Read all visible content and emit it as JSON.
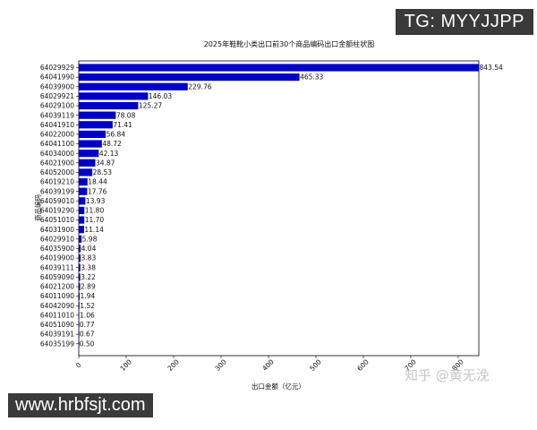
{
  "overlays": {
    "top_right": "TG: MYYJJPP",
    "bottom_left": "www.hrbfsjt.com"
  },
  "watermark": {
    "text": "知乎 @黄无浼"
  },
  "colors": {
    "bar": "#0000c8",
    "overlay_bg": "#3a3a3a"
  },
  "chart_data": {
    "type": "bar",
    "orientation": "horizontal",
    "title": "2025年鞋靴小类出口前30个商品编码出口金额柱状图",
    "xlabel": "出口金额（亿元）",
    "ylabel": "商品编码",
    "xlim": [
      0,
      843.54
    ],
    "xticks": [
      0,
      100,
      200,
      300,
      400,
      500,
      600,
      700,
      800
    ],
    "grid": false,
    "categories": [
      "64029929",
      "64041990",
      "64039900",
      "64029921",
      "64029100",
      "64039119",
      "64041910",
      "64022000",
      "64041100",
      "64034000",
      "64021900",
      "64052000",
      "64019210",
      "64039199",
      "64059010",
      "64019290",
      "64051010",
      "64031900",
      "64029910",
      "64035900",
      "64019900",
      "64039111",
      "64059090",
      "64021200",
      "64011090",
      "64042090",
      "64011010",
      "64051090",
      "64039191",
      "64035199"
    ],
    "values": [
      843.54,
      465.33,
      229.76,
      146.03,
      125.27,
      78.08,
      71.41,
      56.84,
      48.72,
      42.13,
      34.87,
      28.53,
      18.44,
      17.76,
      13.93,
      11.8,
      11.7,
      11.14,
      5.98,
      4.04,
      3.83,
      3.38,
      3.22,
      2.89,
      1.94,
      1.52,
      1.06,
      0.77,
      0.67,
      0.5
    ],
    "value_labels": [
      "843.54",
      "465.33",
      "229.76",
      "146.03",
      "125.27",
      "78.08",
      "71.41",
      "56.84",
      "48.72",
      "42.13",
      "34.87",
      "28.53",
      "18.44",
      "17.76",
      "13.93",
      "11.80",
      "11.70",
      "11.14",
      "5.98",
      "4.04",
      "3.83",
      "3.38",
      "3.22",
      "2.89",
      "1.94",
      "1.52",
      "1.06",
      "0.77",
      "0.67",
      "0.50"
    ]
  }
}
